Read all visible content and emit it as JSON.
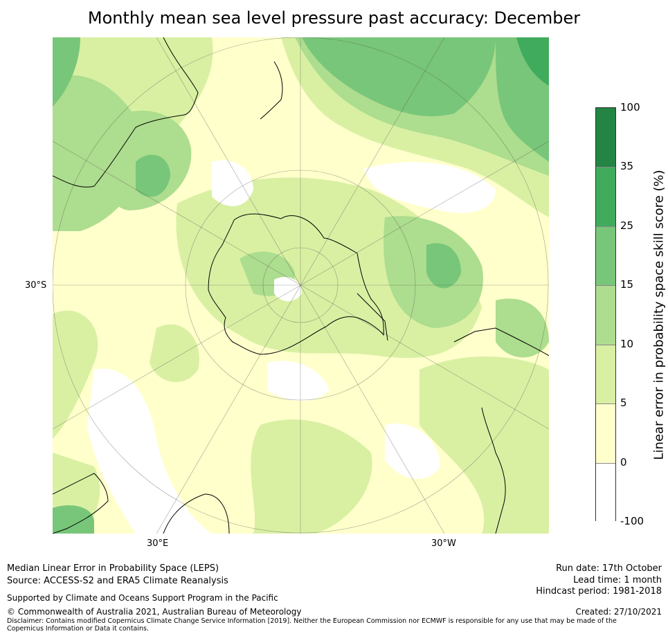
{
  "title": "Monthly mean sea level pressure past accuracy: December",
  "map": {
    "lat_label": "30°S",
    "lon_labels": [
      "30°E",
      "30°W"
    ],
    "fill_colors": {
      "white": "#ffffff",
      "pale_yellow": "#ffffcc",
      "light_green": "#d9f0a3",
      "mid_green": "#addd8e",
      "green": "#78c679",
      "deep_green": "#41ab5d",
      "darkest": "#238443"
    }
  },
  "colorbar": {
    "label": "Linear error in probability space skill score (%)",
    "ticks": [
      "100",
      "35",
      "25",
      "15",
      "10",
      "5",
      "0",
      "-100"
    ],
    "colors": [
      "#238443",
      "#41ab5d",
      "#78c679",
      "#addd8e",
      "#d9f0a3",
      "#ffffcc",
      "#ffffff"
    ]
  },
  "footer": {
    "line1": "Median Linear Error in Probability Space (LEPS)",
    "line2": "Source: ACCESS-S2 and ERA5 Climate Reanalysis",
    "support": "Supported by Climate and Oceans Support Program in the Pacific",
    "copyright": "© Commonwealth of Australia 2021, Australian Bureau of Meteorology",
    "disclaimer": "Disclaimer: Contains modified Copernicus Climate Change Service Information [2019]. Neither the European Commission nor ECMWF is responsible for any use that may be made of the Copernicus Information or Data it contains.",
    "run_date": "Run date: 17th October",
    "lead_time": "Lead time: 1 month",
    "hindcast": "Hindcast period: 1981-2018",
    "created": "Created: 27/10/2021"
  }
}
